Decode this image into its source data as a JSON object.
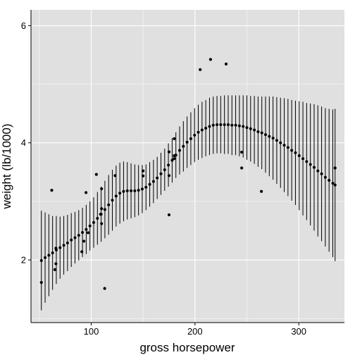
{
  "chart_data": {
    "type": "scatter",
    "title": "",
    "xlabel": "gross horsepower",
    "ylabel": "weight (lb/1000)",
    "xlim": [
      42,
      344
    ],
    "ylim": [
      0.93,
      6.27
    ],
    "xticks": [
      100,
      200,
      300
    ],
    "yticks": [
      2,
      4,
      6
    ],
    "grid": true,
    "legend": "none",
    "colors": {
      "panel": "#e0e0e0",
      "grid": "#ffffff",
      "marks": "#000000"
    },
    "points": [
      {
        "x": 52,
        "y": 1.615
      },
      {
        "x": 62,
        "y": 3.19
      },
      {
        "x": 65,
        "y": 1.835
      },
      {
        "x": 66,
        "y": 1.935
      },
      {
        "x": 66,
        "y": 2.2
      },
      {
        "x": 91,
        "y": 2.14
      },
      {
        "x": 93,
        "y": 2.32
      },
      {
        "x": 95,
        "y": 3.15
      },
      {
        "x": 97,
        "y": 2.465
      },
      {
        "x": 105,
        "y": 3.46
      },
      {
        "x": 109,
        "y": 2.78
      },
      {
        "x": 110,
        "y": 2.62
      },
      {
        "x": 110,
        "y": 2.875
      },
      {
        "x": 110,
        "y": 3.215
      },
      {
        "x": 113,
        "y": 1.513
      },
      {
        "x": 123,
        "y": 3.44
      },
      {
        "x": 150,
        "y": 3.52
      },
      {
        "x": 150,
        "y": 3.435
      },
      {
        "x": 175,
        "y": 3.44
      },
      {
        "x": 175,
        "y": 3.845
      },
      {
        "x": 175,
        "y": 2.77
      },
      {
        "x": 180,
        "y": 4.07
      },
      {
        "x": 180,
        "y": 3.73
      },
      {
        "x": 180,
        "y": 3.78
      },
      {
        "x": 205,
        "y": 5.25
      },
      {
        "x": 215,
        "y": 5.424
      },
      {
        "x": 230,
        "y": 5.345
      },
      {
        "x": 245,
        "y": 3.57
      },
      {
        "x": 245,
        "y": 3.84
      },
      {
        "x": 264,
        "y": 3.17
      },
      {
        "x": 335,
        "y": 3.57
      }
    ],
    "fit": {
      "x": [
        52,
        55.6,
        59.2,
        62.8,
        66.4,
        70,
        73.6,
        77.2,
        80.8,
        84.4,
        88,
        91.6,
        95.2,
        98.8,
        102.4,
        106,
        109.6,
        113.2,
        116.8,
        120.4,
        124,
        127.6,
        131.2,
        134.8,
        138.4,
        142,
        145.6,
        149.2,
        152.8,
        156.4,
        160,
        163.6,
        167.2,
        170.8,
        174.4,
        178,
        181.6,
        185.2,
        188.8,
        192.4,
        196,
        199.6,
        203.2,
        206.8,
        210.4,
        214,
        217.6,
        221.2,
        224.8,
        228.4,
        232,
        235.6,
        239.2,
        242.8,
        246.4,
        250,
        253.6,
        257.2,
        260.8,
        264.4,
        268,
        271.6,
        275.2,
        278.8,
        282.4,
        286,
        289.6,
        293.2,
        296.8,
        300.4,
        304,
        307.6,
        311.2,
        314.8,
        318.4,
        322,
        325.6,
        329.2,
        332.8,
        335
      ],
      "y": [
        1.99,
        2.04,
        2.08,
        2.12,
        2.17,
        2.21,
        2.25,
        2.29,
        2.34,
        2.38,
        2.42,
        2.47,
        2.52,
        2.58,
        2.64,
        2.71,
        2.78,
        2.86,
        2.94,
        3.02,
        3.09,
        3.14,
        3.17,
        3.18,
        3.18,
        3.18,
        3.19,
        3.21,
        3.24,
        3.29,
        3.34,
        3.4,
        3.47,
        3.54,
        3.62,
        3.7,
        3.79,
        3.87,
        3.94,
        4.01,
        4.07,
        4.13,
        4.18,
        4.22,
        4.25,
        4.28,
        4.3,
        4.31,
        4.31,
        4.31,
        4.31,
        4.3,
        4.3,
        4.29,
        4.28,
        4.26,
        4.24,
        4.22,
        4.19,
        4.17,
        4.14,
        4.11,
        4.08,
        4.04,
        4.0,
        3.96,
        3.92,
        3.87,
        3.83,
        3.78,
        3.73,
        3.68,
        3.63,
        3.58,
        3.52,
        3.47,
        3.41,
        3.36,
        3.31,
        3.28
      ],
      "se": [
        0.85,
        0.77,
        0.7,
        0.63,
        0.58,
        0.53,
        0.5,
        0.48,
        0.46,
        0.44,
        0.43,
        0.42,
        0.42,
        0.42,
        0.43,
        0.45,
        0.47,
        0.49,
        0.51,
        0.52,
        0.52,
        0.52,
        0.51,
        0.49,
        0.47,
        0.45,
        0.43,
        0.41,
        0.39,
        0.38,
        0.37,
        0.36,
        0.36,
        0.36,
        0.37,
        0.38,
        0.39,
        0.41,
        0.43,
        0.44,
        0.45,
        0.46,
        0.47,
        0.48,
        0.48,
        0.49,
        0.49,
        0.49,
        0.49,
        0.5,
        0.5,
        0.51,
        0.51,
        0.52,
        0.53,
        0.55,
        0.56,
        0.58,
        0.6,
        0.62,
        0.65,
        0.68,
        0.71,
        0.74,
        0.77,
        0.8,
        0.83,
        0.86,
        0.89,
        0.93,
        0.97,
        1.0,
        1.04,
        1.08,
        1.12,
        1.15,
        1.18,
        1.22,
        1.26,
        1.3
      ]
    }
  }
}
